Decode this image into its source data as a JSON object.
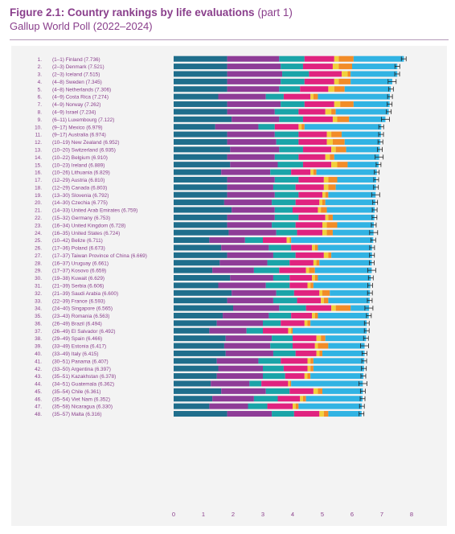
{
  "header": {
    "title_bold": "Figure 2.1: Country rankings by life evaluations",
    "title_part": "(part 1)",
    "subtitle": "Gallup World Poll (2022–2024)"
  },
  "colors": {
    "title": "#8a3f8c",
    "segments": [
      "#1f6e8c",
      "#8e3c97",
      "#1aa4a8",
      "#e0237f",
      "#f2d03c",
      "#f28c28",
      "#31b3e3"
    ]
  },
  "chart_data": {
    "type": "bar",
    "orientation": "horizontal",
    "stacked": true,
    "title": "Figure 2.1: Country rankings by life evaluations (part 1)",
    "subtitle": "Gallup World Poll (2022–2024)",
    "xlim": [
      0,
      8
    ],
    "x_ticks": [
      "0",
      "1",
      "2",
      "3",
      "4",
      "5",
      "6",
      "7",
      "8"
    ],
    "grid": false,
    "error_bars": true,
    "rows": [
      {
        "rank": "1.",
        "range": "(1–1)",
        "country": "Finland",
        "score": "7.736",
        "segs": [
          1.8,
          1.75,
          0.85,
          1.0,
          0.15,
          0.5,
          1.69
        ]
      },
      {
        "rank": "2.",
        "range": "(2–3)",
        "country": "Denmark",
        "score": "7.521",
        "segs": [
          1.8,
          1.8,
          0.75,
          1.0,
          0.2,
          0.45,
          1.52
        ]
      },
      {
        "rank": "3.",
        "range": "(2–3)",
        "country": "Iceland",
        "score": "7.515",
        "segs": [
          1.8,
          1.85,
          0.9,
          1.1,
          0.2,
          0.1,
          1.57
        ]
      },
      {
        "rank": "4.",
        "range": "(4–8)",
        "country": "Sweden",
        "score": "7.345",
        "segs": [
          1.8,
          1.8,
          0.8,
          1.0,
          0.15,
          0.4,
          1.4
        ]
      },
      {
        "rank": "5.",
        "range": "(4–8)",
        "country": "Netherlands",
        "score": "7.306",
        "segs": [
          1.8,
          1.75,
          0.7,
          0.95,
          0.2,
          0.35,
          1.55
        ]
      },
      {
        "rank": "6.",
        "range": "(4–9)",
        "country": "Costa Rica",
        "score": "7.274",
        "segs": [
          1.5,
          1.6,
          0.6,
          0.9,
          0.1,
          0.15,
          2.42
        ]
      },
      {
        "rank": "7.",
        "range": "(4–9)",
        "country": "Norway",
        "score": "7.262",
        "segs": [
          1.8,
          1.8,
          0.8,
          1.0,
          0.2,
          0.45,
          1.21
        ]
      },
      {
        "rank": "8.",
        "range": "(4–9)",
        "country": "Israel",
        "score": "7.234",
        "segs": [
          1.8,
          1.6,
          0.8,
          0.9,
          0.2,
          0.15,
          1.78
        ]
      },
      {
        "rank": "9.",
        "range": "(6–11)",
        "country": "Luxembourg",
        "score": "7.122",
        "segs": [
          1.95,
          1.6,
          0.8,
          1.0,
          0.15,
          0.4,
          1.22
        ]
      },
      {
        "rank": "10.",
        "range": "(9–17)",
        "country": "Mexico",
        "score": "6.979",
        "segs": [
          1.4,
          1.45,
          0.55,
          0.8,
          0.1,
          0.1,
          2.58
        ]
      },
      {
        "rank": "11.",
        "range": "(9–17)",
        "country": "Australia",
        "score": "6.974",
        "segs": [
          1.8,
          1.6,
          0.8,
          0.95,
          0.15,
          0.35,
          1.32
        ]
      },
      {
        "rank": "12.",
        "range": "(10–19)",
        "country": "New Zealand",
        "score": "6.952",
        "segs": [
          1.8,
          1.65,
          0.75,
          0.95,
          0.2,
          0.4,
          1.2
        ]
      },
      {
        "rank": "13.",
        "range": "(10–20)",
        "country": "Switzerland",
        "score": "6.935",
        "segs": [
          1.9,
          1.65,
          0.8,
          0.95,
          0.15,
          0.35,
          1.13
        ]
      },
      {
        "rank": "14.",
        "range": "(10–22)",
        "country": "Belgium",
        "score": "6.910",
        "segs": [
          1.8,
          1.6,
          0.8,
          0.9,
          0.15,
          0.15,
          1.51
        ]
      },
      {
        "rank": "15.",
        "range": "(10–23)",
        "country": "Ireland",
        "score": "6.889",
        "segs": [
          1.9,
          1.6,
          0.85,
          0.95,
          0.2,
          0.35,
          1.04
        ]
      },
      {
        "rank": "16.",
        "range": "(10–26)",
        "country": "Lithuania",
        "score": "6.829",
        "segs": [
          1.6,
          1.65,
          0.7,
          0.65,
          0.1,
          0.1,
          2.03
        ]
      },
      {
        "rank": "17.",
        "range": "(12–29)",
        "country": "Austria",
        "score": "6.810",
        "segs": [
          1.8,
          1.6,
          0.8,
          0.85,
          0.15,
          0.3,
          1.31
        ]
      },
      {
        "rank": "18.",
        "range": "(12–29)",
        "country": "Canada",
        "score": "6.803",
        "segs": [
          1.8,
          1.55,
          0.75,
          0.95,
          0.15,
          0.25,
          1.35
        ]
      },
      {
        "rank": "19.",
        "range": "(13–30)",
        "country": "Slovenia",
        "score": "6.792",
        "segs": [
          1.8,
          1.6,
          0.8,
          0.8,
          0.1,
          0.1,
          1.59
        ]
      },
      {
        "rank": "20.",
        "range": "(14–30)",
        "country": "Czechia",
        "score": "6.775",
        "segs": [
          1.7,
          1.6,
          0.8,
          0.8,
          0.1,
          0.1,
          1.68
        ]
      },
      {
        "rank": "21.",
        "range": "(14–33)",
        "country": "United Arab Emirates",
        "score": "6.759",
        "segs": [
          1.95,
          1.45,
          0.6,
          0.85,
          0.1,
          0.2,
          1.61
        ]
      },
      {
        "rank": "22.",
        "range": "(15–32)",
        "country": "Germany",
        "score": "6.753",
        "segs": [
          1.8,
          1.6,
          0.8,
          0.9,
          0.1,
          0.15,
          1.4
        ]
      },
      {
        "rank": "23.",
        "range": "(16–34)",
        "country": "United Kingdom",
        "score": "6.728",
        "segs": [
          1.8,
          1.5,
          0.8,
          0.9,
          0.15,
          0.35,
          1.23
        ]
      },
      {
        "rank": "24.",
        "range": "(16–35)",
        "country": "United States",
        "score": "6.724",
        "segs": [
          1.85,
          1.6,
          0.7,
          0.85,
          0.15,
          0.2,
          1.37
        ]
      },
      {
        "rank": "25.",
        "range": "(10–42)",
        "country": "Belize",
        "score": "6.711",
        "segs": [
          1.2,
          1.2,
          0.6,
          0.8,
          0.1,
          0.05,
          2.76
        ]
      },
      {
        "rank": "26.",
        "range": "(17–36)",
        "country": "Poland",
        "score": "6.673",
        "segs": [
          1.6,
          1.6,
          0.75,
          0.7,
          0.1,
          0.1,
          1.82
        ]
      },
      {
        "rank": "27.",
        "range": "(17–37)",
        "country": "Taiwan Province of China",
        "score": "6.669",
        "segs": [
          1.8,
          1.55,
          0.75,
          0.95,
          0.15,
          0.1,
          1.37
        ]
      },
      {
        "rank": "28.",
        "range": "(16–37)",
        "country": "Uruguay",
        "score": "6.661",
        "segs": [
          1.55,
          1.6,
          0.75,
          0.8,
          0.1,
          0.1,
          1.76
        ]
      },
      {
        "rank": "29.",
        "range": "(17–37)",
        "country": "Kosovo",
        "score": "6.659",
        "segs": [
          1.3,
          1.4,
          0.85,
          0.9,
          0.1,
          0.2,
          1.91
        ]
      },
      {
        "rank": "30.",
        "range": "(19–38)",
        "country": "Kuwait",
        "score": "6.629",
        "segs": [
          1.9,
          1.45,
          0.55,
          0.75,
          0.1,
          0.1,
          1.78
        ]
      },
      {
        "rank": "31.",
        "range": "(21–39)",
        "country": "Serbia",
        "score": "6.606",
        "segs": [
          1.5,
          1.6,
          0.8,
          0.6,
          0.1,
          0.1,
          1.91
        ]
      },
      {
        "rank": "32.",
        "range": "(21–39)",
        "country": "Saudi Arabia",
        "score": "6.600",
        "segs": [
          1.95,
          1.5,
          0.6,
          0.85,
          0.1,
          0.25,
          1.35
        ]
      },
      {
        "rank": "33.",
        "range": "(22–39)",
        "country": "France",
        "score": "6.593",
        "segs": [
          1.8,
          1.55,
          0.8,
          0.8,
          0.1,
          0.15,
          1.39
        ]
      },
      {
        "rank": "34.",
        "range": "(24–40)",
        "country": "Singapore",
        "score": "6.565",
        "segs": [
          2.0,
          1.55,
          0.9,
          0.85,
          0.15,
          0.5,
          0.62
        ]
      },
      {
        "rank": "35.",
        "range": "(23–43)",
        "country": "Romania",
        "score": "6.563",
        "segs": [
          1.65,
          1.55,
          0.75,
          0.7,
          0.1,
          0.1,
          1.71
        ]
      },
      {
        "rank": "36.",
        "range": "(26–49)",
        "country": "Brazil",
        "score": "6.494",
        "segs": [
          1.45,
          1.55,
          0.6,
          0.8,
          0.1,
          0.1,
          1.89
        ]
      },
      {
        "rank": "37.",
        "range": "(26–49)",
        "country": "El Salvador",
        "score": "6.492",
        "segs": [
          1.2,
          1.25,
          0.55,
          0.85,
          0.1,
          0.05,
          2.49
        ]
      },
      {
        "rank": "38.",
        "range": "(29–49)",
        "country": "Spain",
        "score": "6.466",
        "segs": [
          1.75,
          1.55,
          0.7,
          0.8,
          0.15,
          0.15,
          1.37
        ]
      },
      {
        "rank": "39.",
        "range": "(33–49)",
        "country": "Estonia",
        "score": "6.417",
        "segs": [
          1.7,
          1.55,
          0.75,
          0.75,
          0.1,
          0.35,
          1.22
        ]
      },
      {
        "rank": "40.",
        "range": "(33–49)",
        "country": "Italy",
        "score": "6.415",
        "segs": [
          1.75,
          1.6,
          0.75,
          0.7,
          0.1,
          0.1,
          1.42
        ]
      },
      {
        "rank": "41.",
        "range": "(30–51)",
        "country": "Panama",
        "score": "6.407",
        "segs": [
          1.45,
          1.4,
          0.75,
          0.9,
          0.1,
          0.1,
          1.71
        ]
      },
      {
        "rank": "42.",
        "range": "(33–50)",
        "country": "Argentina",
        "score": "6.397",
        "segs": [
          1.5,
          1.5,
          0.7,
          0.8,
          0.1,
          0.1,
          1.7
        ]
      },
      {
        "rank": "43.",
        "range": "(35–51)",
        "country": "Kazakhstan",
        "score": "6.378",
        "segs": [
          1.45,
          1.55,
          0.75,
          0.65,
          0.1,
          0.1,
          1.78
        ]
      },
      {
        "rank": "44.",
        "range": "(34–51)",
        "country": "Guatemala",
        "score": "6.362",
        "segs": [
          1.25,
          1.3,
          0.4,
          0.9,
          0.05,
          0.05,
          2.41
        ]
      },
      {
        "rank": "45.",
        "range": "(35–54)",
        "country": "Chile",
        "score": "6.361",
        "segs": [
          1.6,
          1.5,
          0.8,
          0.8,
          0.15,
          0.15,
          1.36
        ]
      },
      {
        "rank": "46.",
        "range": "(35–54)",
        "country": "Viet Nam",
        "score": "6.352",
        "segs": [
          1.3,
          1.4,
          0.8,
          0.75,
          0.1,
          0.1,
          1.9
        ]
      },
      {
        "rank": "47.",
        "range": "(35–58)",
        "country": "Nicaragua",
        "score": "6.330",
        "segs": [
          1.2,
          1.3,
          0.65,
          0.85,
          0.1,
          0.1,
          2.13
        ]
      },
      {
        "rank": "48.",
        "range": "(35–57)",
        "country": "Malta",
        "score": "6.316",
        "segs": [
          1.8,
          1.5,
          0.75,
          0.85,
          0.15,
          0.15,
          1.12
        ]
      }
    ]
  }
}
